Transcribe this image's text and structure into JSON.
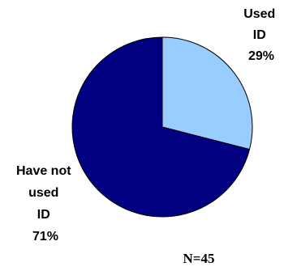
{
  "chart_data": {
    "type": "pie",
    "slices": [
      {
        "label_lines": [
          "Used",
          "ID",
          "29%"
        ],
        "value": 29,
        "color": "#99ccff"
      },
      {
        "label_lines": [
          "Have not",
          "used",
          "ID",
          "71%"
        ],
        "value": 71,
        "color": "#000080"
      }
    ],
    "note": "N=45",
    "title": "",
    "legend": "none"
  }
}
